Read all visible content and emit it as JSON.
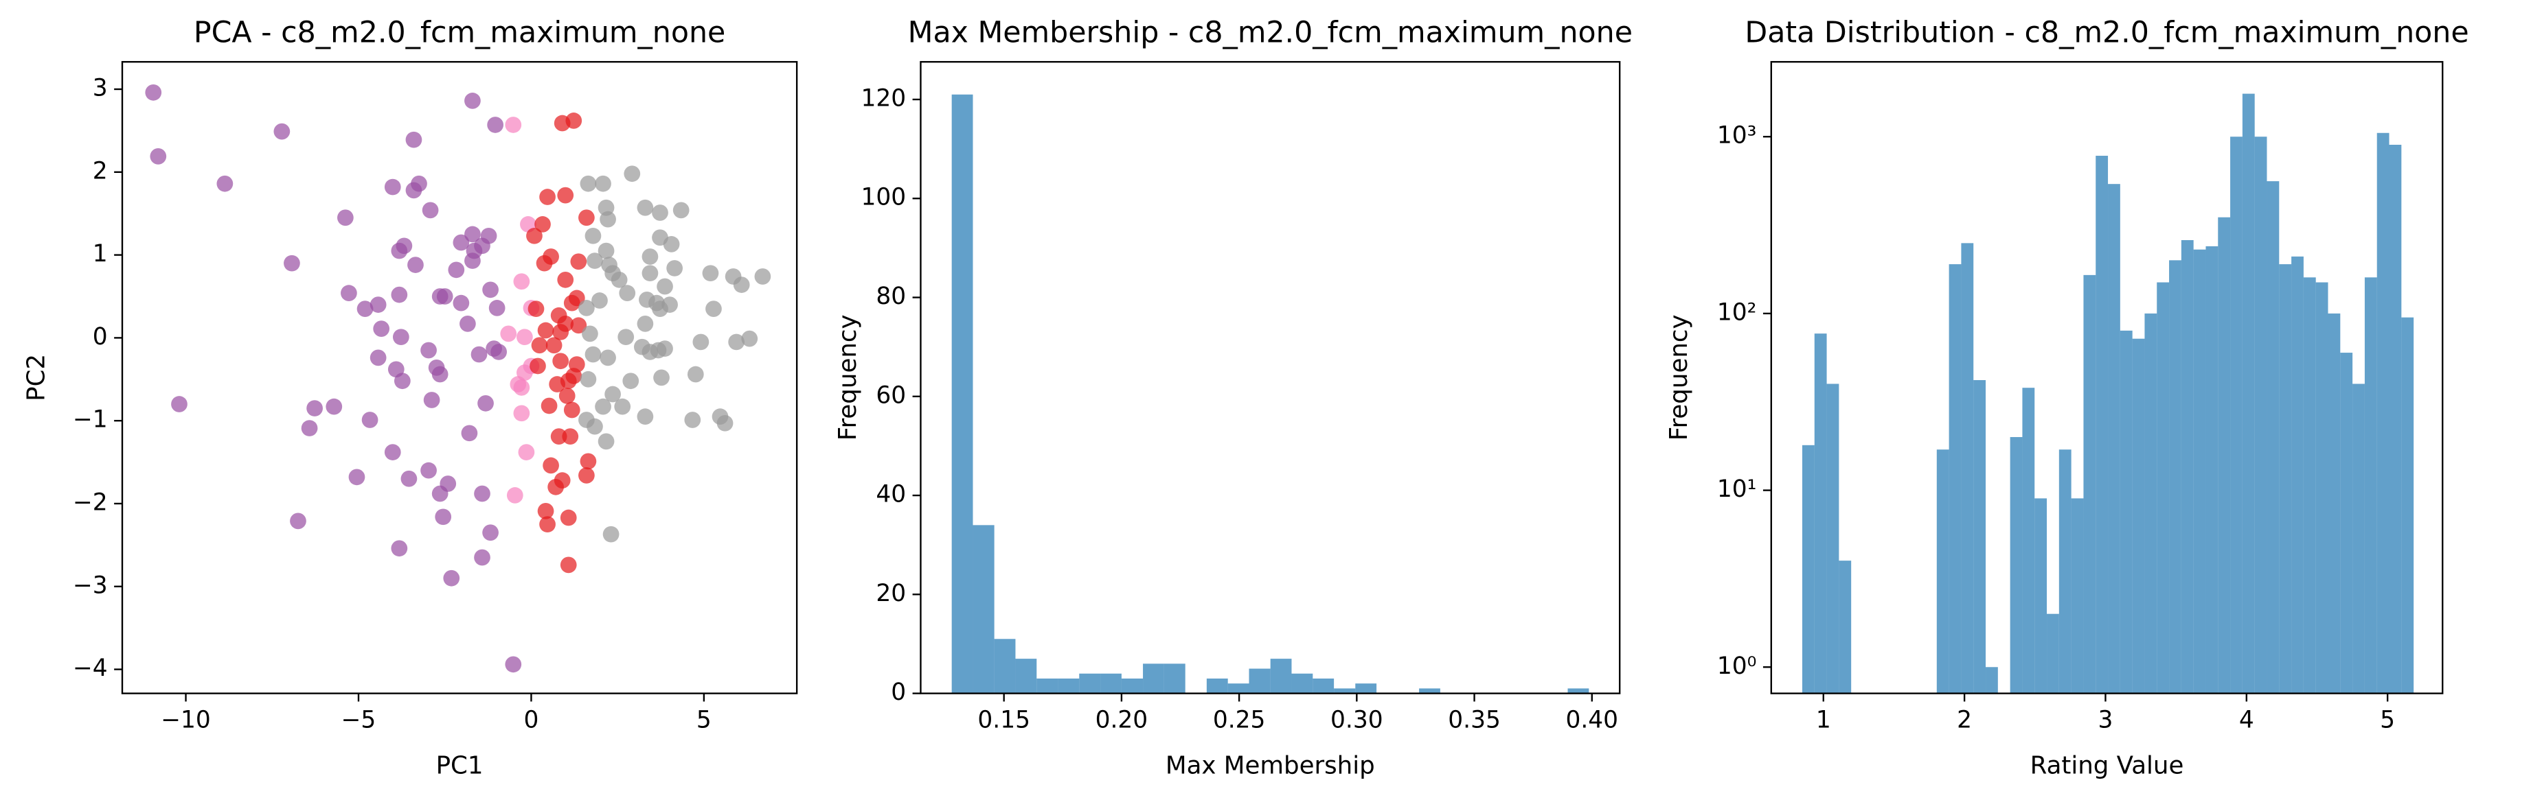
{
  "chart_data": [
    {
      "type": "scatter",
      "title": "PCA - c8_m2.0_fcm_maximum_none",
      "x_label": "PC1",
      "y_label": "PC2",
      "xlim": [
        -11.84,
        7.69
      ],
      "ylim": [
        -4.29,
        3.33
      ],
      "xticks": [
        {
          "value": -10,
          "label": "−10"
        },
        {
          "value": -5,
          "label": "−5"
        },
        0,
        5
      ],
      "yticks": [
        {
          "value": -4,
          "label": "−4"
        },
        {
          "value": -3,
          "label": "−3"
        },
        {
          "value": -2,
          "label": "−2"
        },
        {
          "value": -1,
          "label": "−1"
        },
        0,
        1,
        2,
        3
      ],
      "series": [
        {
          "color": "#984ea3",
          "x": [
            -10.94,
            -10.8,
            -8.87,
            -7.22,
            -6.93,
            -10.19,
            -6.75,
            -6.27,
            -6.42,
            -5.71,
            -5.38,
            -5.28,
            -5.05,
            -4.81,
            -4.43,
            -4.67,
            -4.34,
            -4.43,
            -4.01,
            -3.82,
            -3.68,
            -3.82,
            -3.77,
            -3.91,
            -3.73,
            -4.01,
            -3.82,
            -3.54,
            -3.4,
            -3.25,
            -3.4,
            -2.92,
            -3.35,
            -2.97,
            -2.88,
            -2.74,
            -2.64,
            -2.97,
            -2.5,
            -2.64,
            -2.03,
            -2.17,
            -2.03,
            -2.64,
            -2.55,
            -2.41,
            -2.31,
            -1.84,
            -1.7,
            -1.7,
            -1.65,
            -1.42,
            -1.7,
            -1.79,
            -1.42,
            -1.42,
            -1.51,
            -1.32,
            -1.23,
            -1.04,
            -1.18,
            -0.99,
            -1.08,
            -0.94,
            -0.52,
            -1.18
          ],
          "values": [
            2.96,
            2.19,
            1.86,
            2.49,
            0.9,
            -0.8,
            -2.21,
            -0.85,
            -1.09,
            -0.83,
            1.45,
            0.54,
            -1.68,
            0.35,
            0.4,
            -0.99,
            0.11,
            -0.24,
            1.82,
            1.05,
            1.11,
            0.52,
            0.01,
            -0.38,
            -0.52,
            -1.38,
            -2.54,
            -1.7,
            2.39,
            1.86,
            1.78,
            1.54,
            0.88,
            -0.15,
            -0.75,
            -0.36,
            -0.44,
            -1.6,
            0.5,
            0.5,
            1.15,
            0.82,
            0.42,
            -1.88,
            -2.16,
            -1.76,
            -2.9,
            0.17,
            0.93,
            1.25,
            1.05,
            1.11,
            2.86,
            -1.15,
            -2.65,
            -1.88,
            -0.2,
            -0.79,
            1.23,
            2.57,
            -2.35,
            0.36,
            -0.13,
            -0.17,
            -3.94,
            0.58
          ]
        },
        {
          "color": "#f781bf",
          "x": [
            -0.52,
            -0.09,
            -0.28,
            0,
            -0.19,
            -0.19,
            -0.38,
            -0.28,
            -0.14,
            -0.47,
            -0.28,
            -0.66,
            0
          ],
          "values": [
            2.57,
            1.37,
            0.68,
            0.36,
            0.01,
            -0.42,
            -0.56,
            -0.6,
            -1.38,
            -1.9,
            -0.91,
            0.05,
            -0.34
          ]
        },
        {
          "color": "#e41a1c",
          "x": [
            0.47,
            0.99,
            0.9,
            1.23,
            0.33,
            0.09,
            0.38,
            0.57,
            1.6,
            1.37,
            0.99,
            0.14,
            0.8,
            1.18,
            1.32,
            0.99,
            0.85,
            0.42,
            0.24,
            0.66,
            1.37,
            0.19,
            0.85,
            1.32,
            0.75,
            1.08,
            1.04,
            0.52,
            0.8,
            1.13,
            1.65,
            0.57,
            0.9,
            0.71,
            1.6,
            0.42,
            0.47,
            1.08,
            1.08,
            1.18,
            1.23
          ],
          "values": [
            1.7,
            1.72,
            2.59,
            2.62,
            1.37,
            1.23,
            0.9,
            0.98,
            1.45,
            0.92,
            0.7,
            0.35,
            0.27,
            0.42,
            0.48,
            0.17,
            0.07,
            0.09,
            -0.09,
            -0.09,
            0.15,
            -0.34,
            -0.28,
            -0.32,
            -0.56,
            -0.52,
            -0.7,
            -0.82,
            -1.19,
            -1.19,
            -1.49,
            -1.54,
            -1.72,
            -1.8,
            -1.66,
            -2.09,
            -2.25,
            -2.17,
            -2.74,
            -0.87,
            -0.46
          ]
        },
        {
          "color": "#999999",
          "x": [
            2.08,
            1.65,
            2.92,
            2.17,
            2.22,
            1.79,
            2.17,
            1.84,
            2.26,
            3.3,
            3.73,
            4.34,
            3.73,
            4.06,
            3.44,
            4.15,
            3.44,
            5.19,
            5.85,
            6.7,
            6.09,
            5.28,
            2.55,
            2.36,
            2.78,
            1.98,
            1.6,
            3.35,
            3.63,
            3.87,
            3.3,
            3.73,
            4.01,
            2.74,
            1.7,
            1.79,
            2.22,
            3.21,
            3.44,
            3.68,
            3.87,
            4.76,
            4.91,
            5.94,
            6.32,
            2.36,
            2.88,
            3.77,
            1.65,
            2.08,
            2.64,
            3.3,
            4.67,
            5.47,
            5.61,
            1.6,
            1.84,
            2.17,
            2.31
          ],
          "values": [
            1.86,
            1.86,
            1.98,
            1.57,
            1.43,
            1.23,
            1.05,
            0.93,
            0.88,
            1.57,
            1.51,
            1.54,
            1.21,
            1.13,
            0.98,
            0.84,
            0.78,
            0.78,
            0.74,
            0.74,
            0.64,
            0.35,
            0.7,
            0.78,
            0.54,
            0.45,
            0.36,
            0.46,
            0.42,
            0.62,
            0.17,
            0.35,
            0.4,
            0.01,
            0.05,
            -0.2,
            -0.24,
            -0.11,
            -0.17,
            -0.15,
            -0.13,
            -0.44,
            -0.05,
            -0.05,
            -0.01,
            -0.68,
            -0.52,
            -0.48,
            -0.5,
            -0.83,
            -0.83,
            -0.95,
            -0.99,
            -0.95,
            -1.03,
            -0.99,
            -1.07,
            -1.25,
            -2.37
          ]
        }
      ]
    },
    {
      "type": "histogram",
      "title": "Max Membership - c8_m2.0_fcm_maximum_none",
      "x_label": "Max Membership",
      "y_label": "Frequency",
      "color": "#1f77b4",
      "xlim": [
        0.1146,
        0.4118
      ],
      "ylim": [
        0,
        127.6
      ],
      "xticks": [
        0.15,
        {
          "value": 0.2,
          "label": "0.20"
        },
        0.25,
        {
          "value": 0.3,
          "label": "0.30"
        },
        0.35,
        {
          "value": 0.4,
          "label": "0.40"
        }
      ],
      "yticks": [
        0,
        20,
        40,
        60,
        80,
        100,
        120
      ],
      "bins": [
        0.1278,
        0.1368,
        0.1459,
        0.1549,
        0.1639,
        0.173,
        0.182,
        0.191,
        0.2,
        0.2091,
        0.2181,
        0.2271,
        0.2362,
        0.2452,
        0.2542,
        0.2633,
        0.2723,
        0.2813,
        0.2903,
        0.2994,
        0.3084,
        0.3174,
        0.3265,
        0.3355,
        0.3445,
        0.3536,
        0.3626,
        0.3716,
        0.3806,
        0.3897,
        0.3987
      ],
      "values": [
        121,
        34,
        11,
        7,
        3,
        3,
        4,
        4,
        3,
        6,
        6,
        0,
        3,
        2,
        5,
        7,
        4,
        3,
        1,
        2,
        0,
        0,
        1,
        0,
        0,
        0,
        0,
        0,
        0,
        1
      ]
    },
    {
      "type": "histogram",
      "title": "Data Distribution - c8_m2.0_fcm_maximum_none",
      "x_label": "Rating Value",
      "y_label": "Frequency",
      "color": "#1f77b4",
      "yscale": "log",
      "xlim": [
        0.63,
        5.39
      ],
      "ylim": [
        0.71,
        2650
      ],
      "xticks": [
        1,
        2,
        3,
        4,
        5
      ],
      "yticks": [
        {
          "value": 1,
          "label": "10⁰"
        },
        {
          "value": 10,
          "label": "10¹"
        },
        {
          "value": 100,
          "label": "10²"
        },
        {
          "value": 1000,
          "label": "10³"
        }
      ],
      "bins": [
        0.85,
        0.9367,
        1.0234,
        1.1101,
        1.1968,
        1.2835,
        1.3702,
        1.4569,
        1.5436,
        1.6303,
        1.717,
        1.8037,
        1.8904,
        1.9771,
        2.0638,
        2.1505,
        2.2372,
        2.3239,
        2.4106,
        2.4973,
        2.584,
        2.6707,
        2.7574,
        2.8441,
        2.9308,
        3.0175,
        3.1042,
        3.1909,
        3.2776,
        3.3643,
        3.451,
        3.5377,
        3.6244,
        3.7111,
        3.7978,
        3.8845,
        3.9712,
        4.0579,
        4.1446,
        4.2313,
        4.318,
        4.4047,
        4.4914,
        4.5781,
        4.6648,
        4.7515,
        4.8382,
        4.9249,
        5.0116,
        5.0983,
        5.185
      ],
      "values": [
        18,
        77,
        40,
        4,
        0,
        0,
        0,
        0,
        0,
        0,
        0,
        17,
        190,
        250,
        42,
        1,
        0,
        20,
        38,
        9,
        2,
        17,
        9,
        165,
        780,
        540,
        80,
        72,
        100,
        150,
        200,
        260,
        230,
        240,
        350,
        1000,
        1750,
        1000,
        560,
        190,
        210,
        160,
        150,
        100,
        60,
        40,
        160,
        1050,
        900,
        95
      ]
    }
  ]
}
